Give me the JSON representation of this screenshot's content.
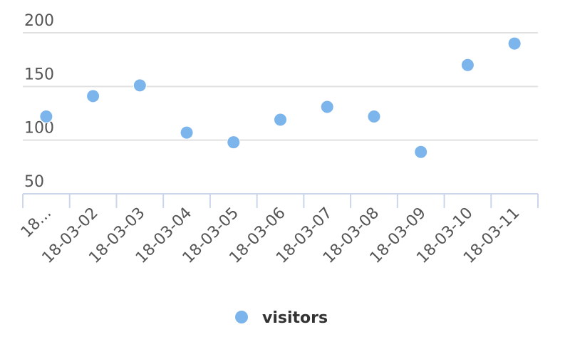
{
  "chart_data": {
    "type": "scatter",
    "categories": [
      "18...",
      "18-03-02",
      "18-03-03",
      "18-03-04",
      "18-03-05",
      "18-03-06",
      "18-03-07",
      "18-03-08",
      "18-03-09",
      "18-03-10",
      "18-03-11"
    ],
    "series": [
      {
        "name": "visitors",
        "color": "#7cb5ec",
        "values": [
          122,
          141,
          151,
          107,
          98,
          119,
          131,
          122,
          89,
          170,
          190
        ]
      }
    ],
    "yticks": [
      50,
      100,
      150,
      200
    ],
    "ytick_labels": [
      "50",
      "100",
      "150",
      "200"
    ],
    "ylim": [
      50,
      200
    ],
    "grid": true,
    "legend": "bottom-center"
  }
}
